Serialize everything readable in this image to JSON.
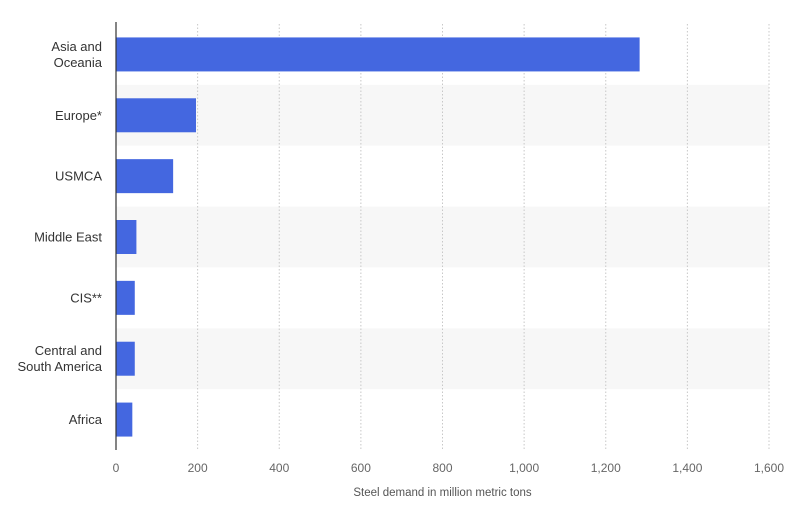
{
  "chart_data": {
    "type": "bar",
    "orientation": "horizontal",
    "categories": [
      [
        "Asia and",
        "Oceania"
      ],
      [
        "Europe*"
      ],
      [
        "USMCA"
      ],
      [
        "Middle East"
      ],
      [
        "CIS**"
      ],
      [
        "Central and",
        "South America"
      ],
      [
        "Africa"
      ]
    ],
    "values": [
      1283,
      196,
      140,
      50,
      46,
      46,
      40
    ],
    "xlabel": "Steel demand in million metric tons",
    "ylabel": "",
    "xlim": [
      0,
      1600
    ],
    "xticks": [
      0,
      200,
      400,
      600,
      800,
      1000,
      1200,
      1400,
      1600
    ],
    "xtick_labels": [
      "0",
      "200",
      "400",
      "600",
      "800",
      "1,000",
      "1,200",
      "1,400",
      "1,600"
    ],
    "grid": true,
    "colors": {
      "bar": "#4467e0",
      "band": "#f7f7f7",
      "grid": "#c8c8c8",
      "axis": "#333333"
    }
  }
}
